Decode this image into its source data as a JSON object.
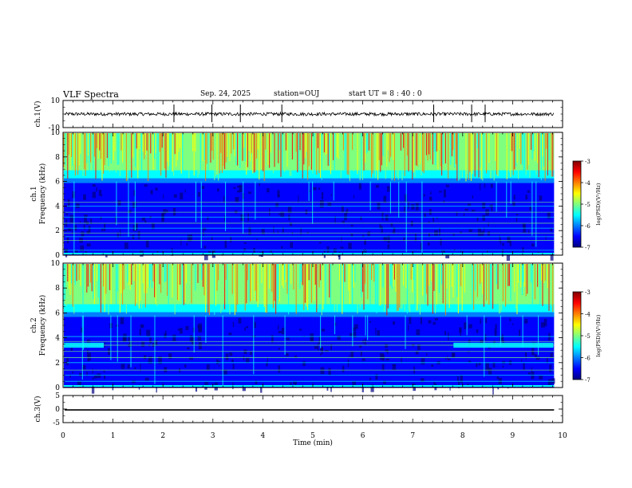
{
  "header": {
    "title": "VLF Spectra",
    "date": "Sep. 24, 2025",
    "station": "station=OUJ",
    "start_ut": "start UT =  8 : 40 : 0"
  },
  "chart_data": [
    {
      "type": "line",
      "panel": "ch1-waveform",
      "ylabel": "ch.1(V)",
      "ylim": [
        -10,
        10
      ],
      "ytick_labels": [
        "10",
        "-10"
      ],
      "x_range_min": [
        0,
        9.83
      ],
      "series": [
        {
          "description_free": true,
          "baseline": 0,
          "noise_amplitude": 1.2,
          "spikes_min": [
            2.22,
            2.98,
            3.55,
            4.38,
            7.42,
            8.18,
            8.45
          ]
        }
      ]
    },
    {
      "type": "heatmap",
      "panel": "ch1-spectrogram",
      "ylabel_lines": [
        "ch.1",
        "Frequency (kHz)"
      ],
      "ylim": [
        0,
        10
      ],
      "ytick_labels": [
        "0",
        "2",
        "4",
        "6",
        "8",
        "10"
      ],
      "x_range_min": [
        0,
        9.83
      ],
      "emission_edge_khz": 6.0,
      "narrowband_lines_khz": [
        0.4,
        1.2,
        1.5,
        1.8,
        2.2,
        2.6,
        3.1,
        3.5,
        4.0,
        4.3
      ],
      "colorbar": {
        "label": "log(PSD)(V²/Hz)",
        "range": [
          -7,
          -3
        ],
        "tick_labels": [
          "-3",
          "-4",
          "-5",
          "-6",
          "-7"
        ]
      }
    },
    {
      "type": "heatmap",
      "panel": "ch2-spectrogram",
      "ylabel_lines": [
        "ch.2",
        "Frequency (kHz)"
      ],
      "ylim": [
        0,
        10
      ],
      "ytick_labels": [
        "0",
        "2",
        "4",
        "6",
        "8",
        "10"
      ],
      "x_range_min": [
        0,
        9.83
      ],
      "emission_edge_khz": 5.8,
      "narrowband_lines_khz": [
        0.5,
        1.0,
        1.4,
        2.0,
        2.4,
        2.9,
        3.4,
        3.7,
        4.1
      ],
      "band_segments": [
        {
          "x_min": [
            0,
            0.8
          ],
          "khz": [
            3.2,
            3.6
          ]
        },
        {
          "x_min": [
            7.8,
            9.8
          ],
          "khz": [
            3.2,
            3.6
          ]
        }
      ],
      "colorbar": {
        "label": "log(PSD)(V²/Hz)",
        "range": [
          -7,
          -3
        ],
        "tick_labels": [
          "-3",
          "-4",
          "-5",
          "-6",
          "-7"
        ]
      }
    },
    {
      "type": "line",
      "panel": "ch3-waveform",
      "ylabel": "ch.3(V)",
      "ylim": [
        -5,
        5
      ],
      "ytick_labels": [
        "5",
        "0",
        "-5"
      ],
      "x_range_min": [
        0,
        9.83
      ],
      "series": [
        {
          "baseline": -0.3
        }
      ]
    }
  ],
  "xaxis": {
    "label": "Time (min)",
    "tick_labels": [
      "0",
      "1",
      "2",
      "3",
      "4",
      "5",
      "6",
      "7",
      "8",
      "9",
      "10"
    ],
    "range": [
      0,
      10
    ]
  },
  "colors": {
    "jet": [
      "#00007f",
      "#0000ff",
      "#007fff",
      "#00ffff",
      "#7fff7f",
      "#ffff00",
      "#ff7f00",
      "#ff0000",
      "#7f0000"
    ]
  }
}
